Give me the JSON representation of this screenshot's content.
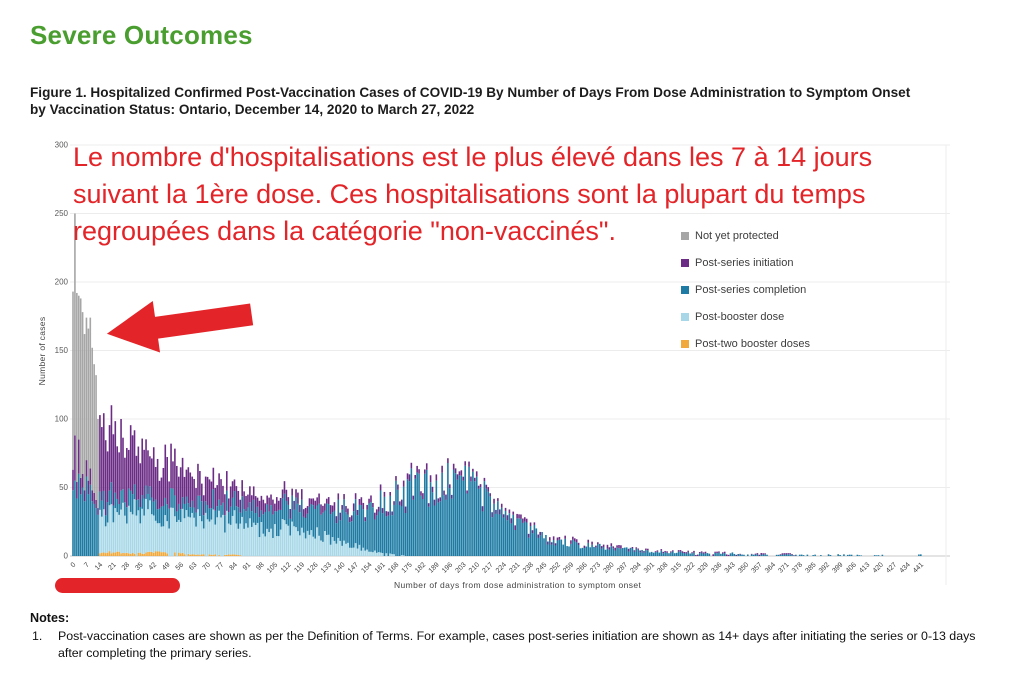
{
  "heading": {
    "text": "Severe Outcomes",
    "color": "#4A9E2F"
  },
  "figure_caption": {
    "line1": "Figure 1. Hospitalized Confirmed Post-Vaccination Cases of COVID-19 By Number of Days From Dose Administration to Symptom Onset",
    "line2": "by Vaccination Status: Ontario, December 14, 2020 to March 27, 2022"
  },
  "annotation": {
    "color": "#E32428",
    "arrow_color": "#E32428",
    "underline_color": "#E32428",
    "lines": [
      "Le nombre d'hospitalisations est le plus élevé dans les 7 à 14 jours",
      "suivant la 1ère dose. Ces hospitalisations sont la plupart du temps",
      "regroupées dans la catégorie \"non-vaccinés\"."
    ]
  },
  "chart_data": {
    "type": "bar",
    "variant": "stacked-daily-histogram",
    "title": "Hospitalized confirmed post-vaccination cases of COVID-19 by number of days from dose administration to symptom onset, by vaccination status",
    "xlabel": "Number of days from dose administration to symptom onset",
    "ylabel": "Number of cases",
    "ylim": [
      0,
      300
    ],
    "yticks": [
      0,
      50,
      100,
      150,
      200,
      250,
      300
    ],
    "xticks": [
      0,
      7,
      14,
      21,
      28,
      35,
      42,
      49,
      56,
      63,
      70,
      77,
      84,
      91,
      98,
      105,
      112,
      119,
      126,
      133,
      140,
      147,
      154,
      161,
      168,
      175,
      182,
      189,
      196,
      203,
      210,
      217,
      224,
      231,
      238,
      245,
      252,
      259,
      266,
      273,
      280,
      287,
      294,
      301,
      308,
      315,
      322,
      329,
      336,
      343,
      350,
      357,
      364,
      371,
      378,
      385,
      392,
      399,
      406,
      413,
      420,
      427,
      434,
      441
    ],
    "grid": true,
    "legend_position": "upper-right",
    "legend": [
      {
        "key": "not_yet_protected",
        "label": "Not yet protected",
        "color": "#A6A6A6"
      },
      {
        "key": "post_series_initiation",
        "label": "Post-series initiation",
        "color": "#6B2C85"
      },
      {
        "key": "post_series_completion",
        "label": "Post-series completion",
        "color": "#1E7BA4"
      },
      {
        "key": "post_booster_dose",
        "label": "Post-booster dose",
        "color": "#A8D8E8"
      },
      {
        "key": "post_two_booster_doses",
        "label": "Post-two booster doses",
        "color": "#F2A93B"
      }
    ],
    "stack_order_bottom_to_top": [
      "post_two_booster_doses",
      "post_booster_dose",
      "post_series_completion",
      "post_series_initiation",
      "not_yet_protected"
    ],
    "series_colors": {
      "not_yet_protected": "#A6A6A6",
      "post_series_initiation": "#6B2C85",
      "post_series_completion": "#1E7BA4",
      "post_booster_dose": "#A8D8E8",
      "post_two_booster_doses": "#F2A93B"
    },
    "daily_days_0_to_13": {
      "days": [
        0,
        1,
        2,
        3,
        4,
        5,
        6,
        7,
        8,
        9,
        10,
        11,
        12,
        13
      ],
      "not_yet_protected": [
        130,
        162,
        138,
        105,
        131,
        118,
        114,
        104,
        111,
        110,
        104,
        94,
        91,
        65
      ],
      "post_series_initiation": [
        15,
        33,
        12,
        25,
        12,
        10,
        8,
        12,
        10,
        12,
        8,
        8,
        6,
        5
      ],
      "post_series_completion": [
        48,
        55,
        42,
        60,
        45,
        50,
        40,
        58,
        45,
        52,
        40,
        38,
        35,
        30
      ],
      "post_booster_dose": [
        0,
        0,
        0,
        0,
        0,
        0,
        0,
        0,
        0,
        0,
        0,
        0,
        0,
        0
      ],
      "post_two_booster_doses": [
        0,
        0,
        0,
        0,
        0,
        0,
        0,
        0,
        0,
        0,
        0,
        0,
        0,
        0
      ]
    },
    "weekly_estimates_day14_onward": {
      "note": "estimated stacked segment heights (cases/day) at each weekly tick; not_yet_protected is 0 for all days >= 14",
      "days": [
        14,
        21,
        28,
        35,
        42,
        49,
        56,
        63,
        70,
        77,
        84,
        91,
        98,
        105,
        112,
        119,
        126,
        133,
        140,
        147,
        154,
        161,
        168,
        175,
        182,
        189,
        196,
        203,
        210,
        217,
        224,
        231,
        238,
        245,
        252,
        259,
        266,
        273,
        280,
        287,
        294,
        301,
        308,
        315,
        322,
        329,
        336,
        343,
        350,
        357,
        364,
        371,
        378,
        385,
        392,
        399,
        406,
        413,
        420,
        427,
        434,
        441
      ],
      "post_series_initiation": [
        55,
        42,
        45,
        32,
        30,
        30,
        24,
        20,
        17,
        15,
        11,
        10,
        9,
        8,
        7,
        6,
        6,
        5,
        5,
        5,
        4,
        4,
        4,
        4,
        4,
        4,
        4,
        3,
        3,
        3,
        3,
        3,
        2,
        2,
        2,
        2,
        2,
        2,
        2,
        2,
        1,
        1,
        1,
        1,
        1,
        1,
        1,
        1,
        0,
        1,
        0,
        1,
        0,
        0,
        0,
        0,
        0,
        0,
        0,
        0,
        0,
        0
      ],
      "post_series_completion": [
        12,
        12,
        12,
        11,
        12,
        11,
        12,
        11,
        12,
        12,
        12,
        12,
        13,
        14,
        15,
        17,
        18,
        20,
        22,
        26,
        30,
        38,
        44,
        48,
        53,
        56,
        55,
        52,
        46,
        38,
        31,
        26,
        19,
        13,
        11,
        9,
        8,
        7,
        6,
        5,
        4,
        3,
        3,
        3,
        2,
        2,
        2,
        2,
        1,
        1,
        1,
        1,
        1,
        1,
        1,
        1,
        1,
        0,
        1,
        0,
        0,
        1
      ],
      "post_booster_dose": [
        28,
        30,
        32,
        30,
        28,
        27,
        26,
        25,
        26,
        25,
        24,
        22,
        21,
        20,
        20,
        18,
        16,
        13,
        10,
        7,
        4,
        2,
        1,
        0,
        0,
        0,
        0,
        0,
        0,
        0,
        0,
        0,
        0,
        0,
        0,
        0,
        0,
        0,
        0,
        0,
        0,
        0,
        0,
        0,
        0,
        0,
        0,
        0,
        0,
        0,
        0,
        0,
        0,
        0,
        0,
        0,
        0,
        0,
        0,
        0,
        0,
        0
      ],
      "post_two_booster_doses": [
        2,
        3,
        2,
        2,
        3,
        2,
        2,
        1,
        1,
        1,
        1,
        0,
        0,
        0,
        0,
        0,
        0,
        0,
        0,
        0,
        0,
        0,
        0,
        0,
        0,
        0,
        0,
        0,
        0,
        0,
        0,
        0,
        0,
        0,
        0,
        0,
        0,
        0,
        0,
        0,
        0,
        0,
        0,
        0,
        0,
        0,
        0,
        0,
        0,
        0,
        0,
        0,
        0,
        0,
        0,
        0,
        0,
        0,
        0,
        0,
        0,
        0
      ]
    },
    "peak_annotation": "single tallest bar ~250 cases at day 1 (Not yet protected); second peak ~100 at day 14 (Post-series initiation); mid hump ~60-65 around days 182-203 (Post-series completion)"
  },
  "notes": {
    "heading": "Notes:",
    "items": [
      {
        "number": "1.",
        "text": "Post-vaccination cases are shown as per the Definition of Terms. For example, cases post-series initiation are shown as 14+ days after initiating the series or 0-13 days after completing the primary series."
      }
    ]
  }
}
